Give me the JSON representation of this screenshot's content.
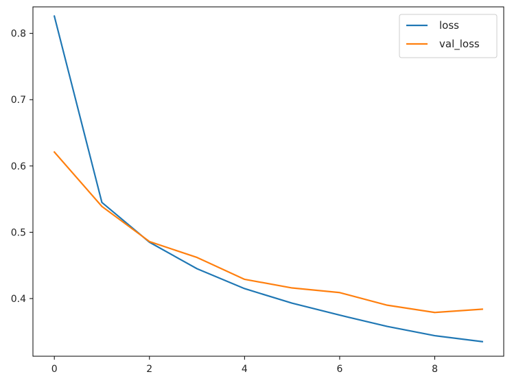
{
  "chart_data": {
    "type": "line",
    "title": "",
    "xlabel": "",
    "ylabel": "",
    "xlim": [
      -0.45,
      9.45
    ],
    "ylim": [
      0.313,
      0.84
    ],
    "xticks": [
      0,
      2,
      4,
      6,
      8
    ],
    "xtick_labels": [
      "0",
      "2",
      "4",
      "6",
      "8"
    ],
    "yticks": [
      0.4,
      0.5,
      0.6,
      0.7,
      0.8
    ],
    "ytick_labels": [
      "0.4",
      "0.5",
      "0.6",
      "0.7",
      "0.8"
    ],
    "grid": false,
    "legend_position": "top-right",
    "x": [
      0,
      1,
      2,
      3,
      4,
      5,
      6,
      7,
      8,
      9
    ],
    "series": [
      {
        "name": "loss",
        "color": "#1f77b4",
        "values": [
          0.826,
          0.545,
          0.485,
          0.445,
          0.415,
          0.393,
          0.375,
          0.358,
          0.344,
          0.335
        ]
      },
      {
        "name": "val_loss",
        "color": "#ff7f0e",
        "values": [
          0.621,
          0.539,
          0.486,
          0.462,
          0.429,
          0.416,
          0.409,
          0.39,
          0.379,
          0.384
        ]
      }
    ]
  }
}
